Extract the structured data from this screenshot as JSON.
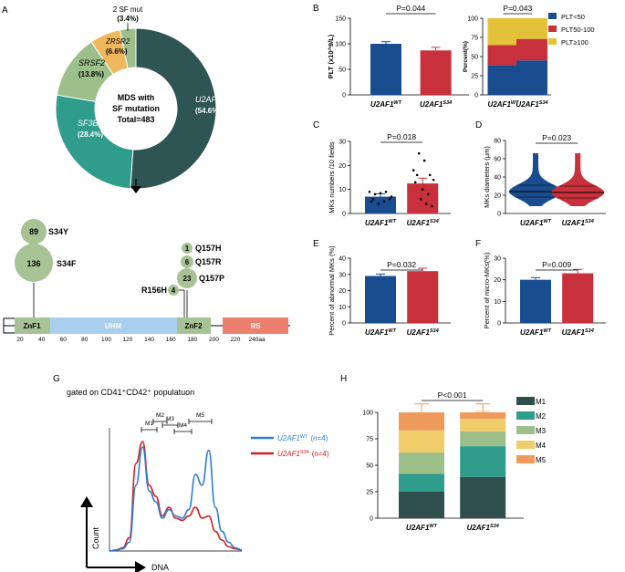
{
  "colors": {
    "blue": "#1a4d8f",
    "red": "#c8303b",
    "yellow": "#e3c23a",
    "teal_dark": "#2e5453",
    "teal": "#2f9c8c",
    "green": "#9dc08a",
    "orange_light": "#f0b85c",
    "circle": "#a7c396",
    "uhm": "#a9cfee",
    "rs": "#ec7f6e",
    "m1": "#2f4f4c",
    "m2": "#2f9c8c",
    "m3": "#9dc08a",
    "m4": "#f0cc6a",
    "m5": "#ee9a5c",
    "flow_blue": "#2d7fd0",
    "flow_red": "#d0202a"
  },
  "panel_labels": {
    "A": "A",
    "B": "B",
    "C": "C",
    "D": "D",
    "E": "E",
    "F": "F",
    "G": "G",
    "H": "H"
  },
  "donut": {
    "center": [
      "MDS with",
      "SF mutation",
      "Total=483"
    ],
    "segments": [
      {
        "name": "U2AF1",
        "pct": "(54.6%)",
        "value": 54.6
      },
      {
        "name": "SF3B1",
        "pct": "(28.4%)",
        "value": 28.4
      },
      {
        "name": "SRSF2",
        "pct": "(13.8%)",
        "value": 13.8
      },
      {
        "name": "ZRSR2",
        "pct": "(6.6%)",
        "value": 6.6
      },
      {
        "name": "2 SF mut",
        "pct": "(3.4%)",
        "value": 3.4
      }
    ]
  },
  "protein": {
    "domains": [
      {
        "name": "ZnF1"
      },
      {
        "name": "UHM"
      },
      {
        "name": "ZnF2"
      },
      {
        "name": "RS"
      }
    ],
    "ticks": [
      "20",
      "40",
      "60",
      "80",
      "100",
      "120",
      "140",
      "160",
      "180",
      "200",
      "220",
      "240aa"
    ],
    "mutations": [
      {
        "count": "89",
        "label": "S34Y"
      },
      {
        "count": "136",
        "label": "S34F"
      },
      {
        "count": "4",
        "label": "R156H"
      },
      {
        "count": "1",
        "label": "Q157H"
      },
      {
        "count": "6",
        "label": "Q157R"
      },
      {
        "count": "23",
        "label": "Q157P"
      }
    ]
  },
  "chart_data": [
    {
      "panel": "B1",
      "type": "bar",
      "title": "",
      "ylabel": "PLT (x10^9/L)",
      "ylim": [
        0,
        150
      ],
      "yticks": [
        "0",
        "50",
        "100",
        "150"
      ],
      "categories": [
        "U2AF1WT",
        "U2AF1S34"
      ],
      "values": [
        100,
        87
      ],
      "errors": [
        4,
        6
      ],
      "pvalue": "P=0.044"
    },
    {
      "panel": "B2",
      "type": "bar",
      "stacked": true,
      "ylabel": "Percent(%)",
      "ylim": [
        0,
        100
      ],
      "yticks": [
        "0",
        "25",
        "50",
        "75",
        "100"
      ],
      "categories": [
        "U2AF1WT",
        "U2AF1S34"
      ],
      "series": [
        {
          "name": "PLT<50",
          "values": [
            39,
            45
          ]
        },
        {
          "name": "PLT50-100",
          "values": [
            26,
            28
          ]
        },
        {
          "name": "PLT≥100",
          "values": [
            35,
            27
          ]
        }
      ],
      "pvalue": "P=0.043"
    },
    {
      "panel": "C",
      "type": "bar",
      "ylabel": "MKs numbers /10 fields",
      "ylim": [
        0,
        30
      ],
      "yticks": [
        "0",
        "10",
        "20",
        "30"
      ],
      "categories": [
        "U2AF1WT",
        "U2AF1S34"
      ],
      "values": [
        7,
        12.5
      ],
      "errors": [
        1.2,
        2.2
      ],
      "pvalue": "P=0.018"
    },
    {
      "panel": "D",
      "type": "violin",
      "ylabel": "MKs diameters (μm)",
      "ylim": [
        0,
        80
      ],
      "yticks": [
        "0",
        "20",
        "40",
        "60",
        "80"
      ],
      "categories": [
        "U2AF1WT",
        "U2AF1S34"
      ],
      "medians": [
        24,
        23
      ],
      "max": [
        66,
        66
      ],
      "min": [
        8,
        8
      ],
      "pvalue": "P=0.023"
    },
    {
      "panel": "E",
      "type": "bar",
      "ylabel": "Percent of abnormal MKs (%)",
      "ylim": [
        0,
        40
      ],
      "yticks": [
        "0",
        "10",
        "20",
        "30",
        "40"
      ],
      "categories": [
        "U2AF1WT",
        "U2AF1S34"
      ],
      "values": [
        29,
        32
      ],
      "errors": [
        1.2,
        1.8
      ],
      "pvalue": "P=0.032"
    },
    {
      "panel": "F",
      "type": "bar",
      "ylabel": "Percent of micro-MKs(%)",
      "ylim": [
        0,
        30
      ],
      "yticks": [
        "0",
        "10",
        "20",
        "30"
      ],
      "categories": [
        "U2AF1WT",
        "U2AF1S34"
      ],
      "values": [
        20,
        23
      ],
      "errors": [
        1,
        1.8
      ],
      "pvalue": "P=0.009"
    },
    {
      "panel": "G",
      "type": "line",
      "title": "gated on CD41⁺CD42⁺ populatuon",
      "xlabel": "DNA",
      "ylabel": "Count",
      "gates": [
        "M1",
        "M2",
        "M3",
        "M4",
        "M5"
      ],
      "series": [
        {
          "name": "U2AF1WT",
          "n": "(n=4)"
        },
        {
          "name": "U2AF1S34",
          "n": "(n=4)"
        }
      ],
      "x": [
        0,
        1,
        2,
        3,
        4,
        5,
        6,
        7,
        8,
        9,
        10,
        11,
        12,
        13,
        14,
        15,
        16,
        17,
        18,
        19,
        20
      ],
      "wt": [
        0,
        1,
        2,
        8,
        60,
        95,
        55,
        45,
        30,
        38,
        32,
        30,
        38,
        70,
        60,
        92,
        40,
        18,
        8,
        3,
        1
      ],
      "s34": [
        0,
        1,
        3,
        12,
        80,
        100,
        60,
        50,
        32,
        40,
        30,
        28,
        32,
        40,
        30,
        32,
        18,
        10,
        4,
        2,
        1
      ]
    },
    {
      "panel": "H",
      "type": "bar",
      "stacked": true,
      "ylim": [
        0,
        100
      ],
      "yticks": [
        "0",
        "25",
        "50",
        "75",
        "100"
      ],
      "categories": [
        "U2AF1WT",
        "U2AF1S34"
      ],
      "series": [
        {
          "name": "M1",
          "values": [
            25,
            39
          ]
        },
        {
          "name": "M2",
          "values": [
            17,
            29
          ]
        },
        {
          "name": "M3",
          "values": [
            20,
            14
          ]
        },
        {
          "name": "M4",
          "values": [
            21,
            12
          ]
        },
        {
          "name": "M5",
          "values": [
            17,
            6
          ]
        }
      ],
      "pvalue": "P<0.001"
    }
  ],
  "xlabels": {
    "gene": "U2AF1",
    "wt": "WT",
    "s34": "S34"
  }
}
